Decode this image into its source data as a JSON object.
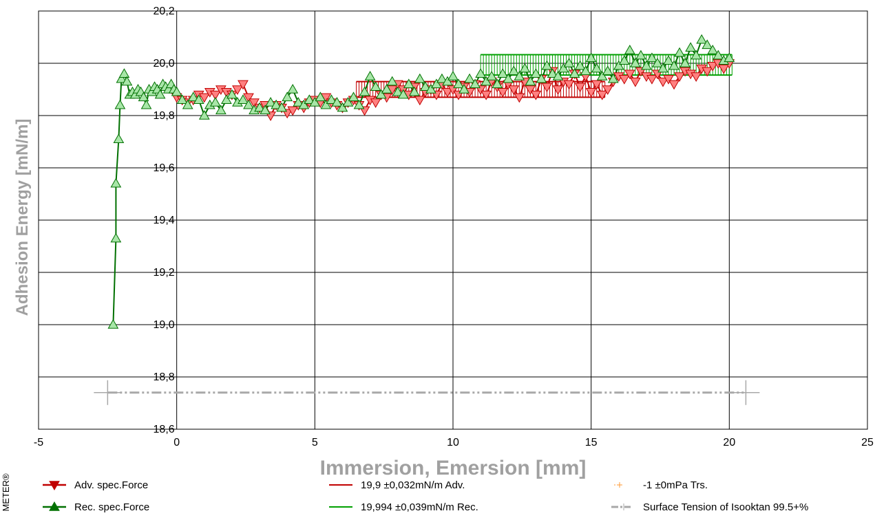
{
  "side_label": "METER®",
  "chart_data": {
    "type": "scatter",
    "xlabel": "Immersion, Emersion [mm]",
    "ylabel": "Adhesion Energy [mN/m]",
    "xlim": [
      -5,
      25
    ],
    "ylim": [
      18.6,
      20.2
    ],
    "xticks": [
      -5,
      0,
      5,
      10,
      15,
      20,
      25
    ],
    "xtick_labels": [
      "-5",
      "0",
      "5",
      "10",
      "15",
      "20",
      "25"
    ],
    "yticks": [
      18.6,
      18.8,
      19.0,
      19.2,
      19.4,
      19.6,
      19.8,
      20.0,
      20.2
    ],
    "ytick_labels": [
      "18,6",
      "18,8",
      "19,0",
      "19,2",
      "19,4",
      "19,6",
      "19,8",
      "20,0",
      "20,2"
    ],
    "grid": true,
    "legend_position": "bottom",
    "series": [
      {
        "name": "Adv. spec.Force",
        "color": "#ff8080",
        "line_color": "#c00000",
        "marker": "triangle-down",
        "x": [
          0.0,
          0.2,
          0.4,
          0.6,
          0.8,
          1.0,
          1.2,
          1.4,
          1.6,
          1.8,
          2.0,
          2.2,
          2.4,
          2.6,
          2.8,
          3.0,
          3.2,
          3.4,
          3.6,
          3.8,
          4.0,
          4.2,
          4.4,
          4.6,
          4.8,
          5.0,
          5.2,
          5.4,
          5.6,
          5.8,
          6.0,
          6.2,
          6.4,
          6.6,
          6.8,
          7.0,
          7.2,
          7.4,
          7.6,
          7.8,
          8.0,
          8.2,
          8.4,
          8.6,
          8.8,
          9.0,
          9.2,
          9.4,
          9.6,
          9.8,
          10.0,
          10.2,
          10.4,
          10.6,
          10.8,
          11.0,
          11.2,
          11.4,
          11.6,
          11.8,
          12.0,
          12.2,
          12.4,
          12.6,
          12.8,
          13.0,
          13.2,
          13.4,
          13.6,
          13.8,
          14.0,
          14.2,
          14.4,
          14.6,
          14.8,
          15.0,
          15.2,
          15.4,
          15.6,
          15.8,
          16.0,
          16.2,
          16.4,
          16.6,
          16.8,
          17.0,
          17.2,
          17.4,
          17.6,
          17.8,
          18.0,
          18.2,
          18.4,
          18.6,
          18.8,
          19.0,
          19.2,
          19.4,
          19.6,
          19.8,
          20.0
        ],
        "y": [
          19.87,
          19.86,
          19.85,
          19.86,
          19.88,
          19.87,
          19.89,
          19.88,
          19.9,
          19.89,
          19.88,
          19.9,
          19.92,
          19.87,
          19.85,
          19.83,
          19.84,
          19.8,
          19.84,
          19.83,
          19.81,
          19.82,
          19.84,
          19.83,
          19.85,
          19.86,
          19.85,
          19.87,
          19.85,
          19.84,
          19.83,
          19.85,
          19.86,
          19.84,
          19.82,
          19.86,
          19.85,
          19.88,
          19.87,
          19.9,
          19.92,
          19.9,
          19.88,
          19.91,
          19.86,
          19.89,
          19.9,
          19.88,
          19.92,
          19.89,
          19.9,
          19.88,
          19.91,
          19.89,
          19.92,
          19.9,
          19.88,
          19.93,
          19.91,
          19.89,
          19.92,
          19.9,
          19.87,
          19.93,
          19.9,
          19.88,
          19.94,
          19.91,
          19.97,
          19.9,
          19.93,
          19.92,
          19.96,
          19.91,
          19.95,
          19.89,
          19.92,
          19.88,
          19.9,
          19.93,
          19.95,
          19.94,
          19.96,
          19.93,
          19.97,
          19.95,
          19.94,
          19.96,
          19.93,
          19.94,
          19.92,
          19.95,
          19.97,
          19.96,
          19.95,
          19.98,
          19.97,
          19.99,
          20.0,
          19.98,
          20.0
        ]
      },
      {
        "name": "Rec. spec.Force",
        "color": "#a8e6a8",
        "line_color": "#007000",
        "marker": "triangle-up",
        "x": [
          -2.3,
          -2.2,
          -2.2,
          -2.1,
          -2.05,
          -2.0,
          -1.9,
          -1.8,
          -1.7,
          -1.6,
          -1.5,
          -1.4,
          -1.3,
          -1.2,
          -1.1,
          -1.0,
          -0.9,
          -0.8,
          -0.7,
          -0.6,
          -0.5,
          -0.4,
          -0.3,
          -0.2,
          -0.1,
          0.0,
          0.2,
          0.4,
          0.6,
          0.8,
          1.0,
          1.2,
          1.4,
          1.6,
          1.8,
          2.0,
          2.2,
          2.4,
          2.6,
          2.8,
          3.0,
          3.2,
          3.4,
          3.6,
          3.8,
          4.0,
          4.2,
          4.4,
          4.6,
          4.8,
          5.0,
          5.2,
          5.4,
          5.6,
          5.8,
          6.0,
          6.2,
          6.4,
          6.6,
          6.8,
          7.0,
          7.2,
          7.4,
          7.6,
          7.8,
          8.0,
          8.2,
          8.4,
          8.6,
          8.8,
          9.0,
          9.2,
          9.4,
          9.6,
          9.8,
          10.0,
          10.2,
          10.4,
          10.6,
          10.8,
          11.0,
          11.2,
          11.4,
          11.6,
          11.8,
          12.0,
          12.2,
          12.4,
          12.6,
          12.8,
          13.0,
          13.2,
          13.4,
          13.6,
          13.8,
          14.0,
          14.2,
          14.4,
          14.6,
          14.8,
          15.0,
          15.2,
          15.4,
          15.6,
          15.8,
          16.0,
          16.2,
          16.4,
          16.6,
          16.8,
          17.0,
          17.2,
          17.4,
          17.6,
          17.8,
          18.0,
          18.2,
          18.4,
          18.6,
          18.8,
          19.0,
          19.2,
          19.4,
          19.6,
          19.8,
          20.0
        ],
        "y": [
          19.0,
          19.33,
          19.54,
          19.71,
          19.84,
          19.94,
          19.96,
          19.93,
          19.88,
          19.89,
          19.88,
          19.9,
          19.89,
          19.87,
          19.84,
          19.9,
          19.89,
          19.91,
          19.9,
          19.88,
          19.92,
          19.91,
          19.9,
          19.92,
          19.9,
          19.89,
          19.86,
          19.84,
          19.87,
          19.86,
          19.8,
          19.84,
          19.85,
          19.82,
          19.86,
          19.88,
          19.85,
          19.86,
          19.84,
          19.82,
          19.83,
          19.82,
          19.85,
          19.84,
          19.83,
          19.87,
          19.9,
          19.85,
          19.84,
          19.86,
          19.85,
          19.87,
          19.84,
          19.86,
          19.85,
          19.83,
          19.85,
          19.87,
          19.84,
          19.89,
          19.95,
          19.91,
          19.88,
          19.9,
          19.93,
          19.89,
          19.88,
          19.92,
          19.89,
          19.94,
          19.91,
          19.9,
          19.92,
          19.94,
          19.93,
          19.95,
          19.92,
          19.9,
          19.94,
          19.92,
          19.96,
          19.93,
          19.95,
          19.92,
          19.96,
          19.94,
          19.97,
          19.95,
          19.98,
          19.93,
          19.96,
          19.94,
          19.99,
          19.96,
          19.95,
          19.98,
          20.0,
          19.96,
          19.99,
          19.97,
          20.02,
          19.98,
          19.95,
          19.97,
          19.94,
          19.99,
          20.01,
          20.05,
          20.0,
          20.03,
          19.99,
          20.02,
          20.0,
          19.98,
          20.01,
          19.99,
          20.04,
          20.0,
          20.06,
          20.03,
          20.09,
          20.07,
          20.05,
          20.03,
          20.01,
          20.02
        ]
      },
      {
        "name": "19,9 ±0,032mN/m Adv.",
        "color": "#c00000",
        "type": "band",
        "segments": [
          [
            6.5,
            10.5,
            19.87,
            19.93
          ],
          [
            10.5,
            15.5,
            19.87,
            19.93
          ]
        ]
      },
      {
        "name": "19,994 ±0,039mN/m Rec.",
        "color": "#00a000",
        "type": "band",
        "segments": [
          [
            11.0,
            20.1,
            19.955,
            20.033
          ]
        ]
      },
      {
        "name": "-1 ±0mPa Trs.",
        "color": "#ff9933",
        "marker": "plus",
        "x": [],
        "y": []
      },
      {
        "name": "Surface Tension of Isooktan 99.5+%",
        "color": "#a8a8a8",
        "type": "hline",
        "y": 18.74,
        "x_range": [
          -2.5,
          20.6
        ]
      }
    ]
  }
}
